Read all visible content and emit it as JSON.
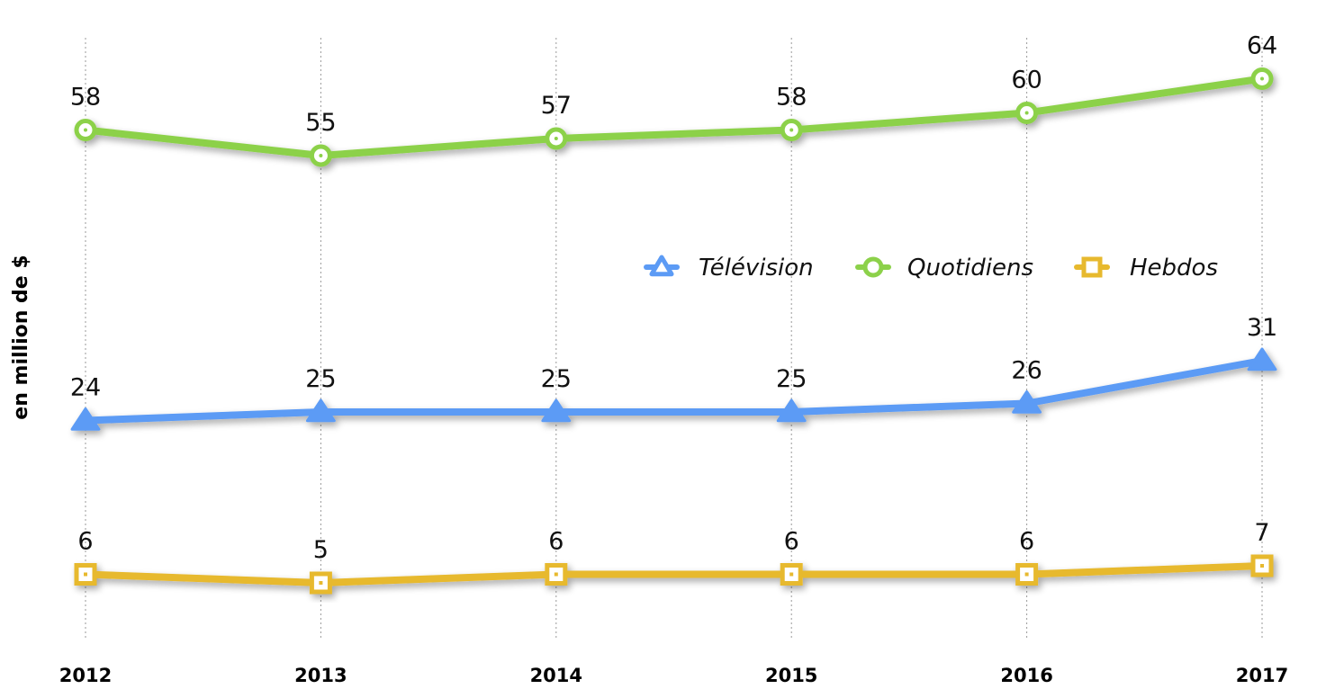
{
  "chart_data": {
    "type": "line",
    "title": "",
    "ylabel": "en million de $",
    "xlabel": "",
    "categories": [
      "2012",
      "2013",
      "2014",
      "2015",
      "2016",
      "2017"
    ],
    "series": [
      {
        "name": "Télévision",
        "values": [
          24,
          25,
          25,
          25,
          26,
          31
        ],
        "color": "#5c9bf5",
        "marker": "triangle"
      },
      {
        "name": "Quotidiens",
        "values": [
          58,
          55,
          57,
          58,
          60,
          64
        ],
        "color": "#8cd14a",
        "marker": "circle"
      },
      {
        "name": "Hebdos",
        "values": [
          6,
          5,
          6,
          6,
          6,
          7
        ],
        "color": "#e7b92e",
        "marker": "square"
      }
    ],
    "ylim": [
      -1,
      69
    ],
    "grid": "vertical dotted",
    "legend_position": "center-right",
    "data_labels": true
  }
}
